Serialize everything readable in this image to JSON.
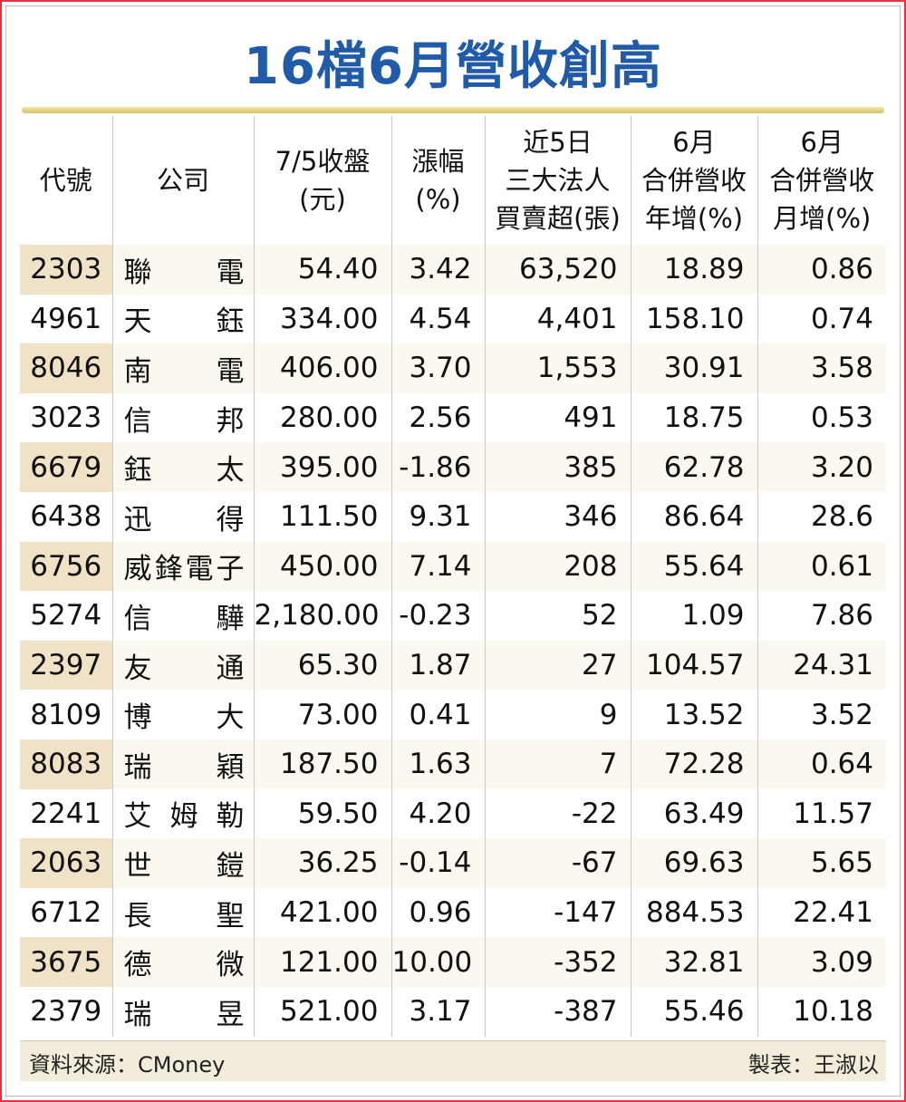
{
  "title": "16檔6月營收創高",
  "headers": [
    {
      "lines": [
        "代號"
      ]
    },
    {
      "lines": [
        "公司"
      ]
    },
    {
      "lines": [
        "7/5收盤",
        "(元)"
      ]
    },
    {
      "lines": [
        "漲幅",
        "(%)"
      ]
    },
    {
      "lines": [
        "近5日",
        "三大法人",
        "買賣超(張)"
      ]
    },
    {
      "lines": [
        "6月",
        "合併營收",
        "年增(%)"
      ]
    },
    {
      "lines": [
        "6月",
        "合併營收",
        "月增(%)"
      ]
    }
  ],
  "rows": [
    {
      "code": "2303",
      "name": [
        "聯",
        "電"
      ],
      "close": "54.40",
      "change": "3.42",
      "net": "63,520",
      "yoy": "18.89",
      "mom": "0.86"
    },
    {
      "code": "4961",
      "name": [
        "天",
        "鈺"
      ],
      "close": "334.00",
      "change": "4.54",
      "net": "4,401",
      "yoy": "158.10",
      "mom": "0.74"
    },
    {
      "code": "8046",
      "name": [
        "南",
        "電"
      ],
      "close": "406.00",
      "change": "3.70",
      "net": "1,553",
      "yoy": "30.91",
      "mom": "3.58"
    },
    {
      "code": "3023",
      "name": [
        "信",
        "邦"
      ],
      "close": "280.00",
      "change": "2.56",
      "net": "491",
      "yoy": "18.75",
      "mom": "0.53"
    },
    {
      "code": "6679",
      "name": [
        "鈺",
        "太"
      ],
      "close": "395.00",
      "change": "-1.86",
      "net": "385",
      "yoy": "62.78",
      "mom": "3.20"
    },
    {
      "code": "6438",
      "name": [
        "迅",
        "得"
      ],
      "close": "111.50",
      "change": "9.31",
      "net": "346",
      "yoy": "86.64",
      "mom": "28.6"
    },
    {
      "code": "6756",
      "name": [
        "威",
        "鋒",
        "電",
        "子"
      ],
      "close": "450.00",
      "change": "7.14",
      "net": "208",
      "yoy": "55.64",
      "mom": "0.61"
    },
    {
      "code": "5274",
      "name": [
        "信",
        "驊"
      ],
      "close": "2,180.00",
      "change": "-0.23",
      "net": "52",
      "yoy": "1.09",
      "mom": "7.86"
    },
    {
      "code": "2397",
      "name": [
        "友",
        "通"
      ],
      "close": "65.30",
      "change": "1.87",
      "net": "27",
      "yoy": "104.57",
      "mom": "24.31"
    },
    {
      "code": "8109",
      "name": [
        "博",
        "大"
      ],
      "close": "73.00",
      "change": "0.41",
      "net": "9",
      "yoy": "13.52",
      "mom": "3.52"
    },
    {
      "code": "8083",
      "name": [
        "瑞",
        "穎"
      ],
      "close": "187.50",
      "change": "1.63",
      "net": "7",
      "yoy": "72.28",
      "mom": "0.64"
    },
    {
      "code": "2241",
      "name": [
        "艾",
        "姆",
        "勒"
      ],
      "close": "59.50",
      "change": "4.20",
      "net": "-22",
      "yoy": "63.49",
      "mom": "11.57"
    },
    {
      "code": "2063",
      "name": [
        "世",
        "鎧"
      ],
      "close": "36.25",
      "change": "-0.14",
      "net": "-67",
      "yoy": "69.63",
      "mom": "5.65"
    },
    {
      "code": "6712",
      "name": [
        "長",
        "聖"
      ],
      "close": "421.00",
      "change": "0.96",
      "net": "-147",
      "yoy": "884.53",
      "mom": "22.41"
    },
    {
      "code": "3675",
      "name": [
        "德",
        "微"
      ],
      "close": "121.00",
      "change": "10.00",
      "net": "-352",
      "yoy": "32.81",
      "mom": "3.09"
    },
    {
      "code": "2379",
      "name": [
        "瑞",
        "昱"
      ],
      "close": "521.00",
      "change": "3.17",
      "net": "-387",
      "yoy": "55.46",
      "mom": "10.18"
    }
  ],
  "footer": {
    "source": "資料來源：CMoney",
    "maker": "製表：王淑以"
  },
  "colors": {
    "title": "#1f5ba8",
    "border": "#e8313d",
    "row_shade": "#fbf8ef",
    "code_shade": "#efe2c6"
  }
}
